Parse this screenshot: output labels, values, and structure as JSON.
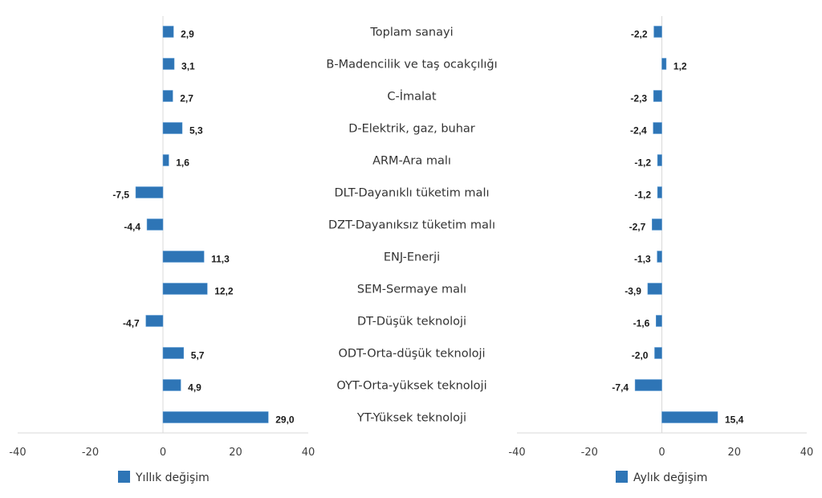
{
  "chart_data": [
    {
      "type": "bar",
      "orientation": "horizontal",
      "title": "",
      "xlabel": "",
      "ylabel": "",
      "xlim": [
        -40,
        40
      ],
      "xticks": [
        "-40",
        "-20",
        "0",
        "20",
        "40"
      ],
      "legend": {
        "label": "Yıllık değişim",
        "placement": "bottom"
      },
      "categories": [
        "Toplam sanayi",
        "B-Madencilik ve taş ocakçılığı",
        "C-İmalat",
        "D-Elektrik, gaz, buhar",
        "ARM-Ara malı",
        "DLT-Dayanıklı tüketim malı",
        "DZT-Dayanıksız tüketim malı",
        "ENJ-Enerji",
        "SEM-Sermaye malı",
        "DT-Düşük teknoloji",
        "ODT-Orta-düşük teknoloji",
        "OYT-Orta-yüksek teknoloji",
        "YT-Yüksek teknoloji"
      ],
      "values": [
        2.9,
        3.1,
        2.7,
        5.3,
        1.6,
        -7.5,
        -4.4,
        11.3,
        12.2,
        -4.7,
        5.7,
        4.9,
        29.0
      ],
      "labels": [
        "2,9",
        "3,1",
        "2,7",
        "5,3",
        "1,6",
        "-7,5",
        "-4,4",
        "11,3",
        "12,2",
        "-4,7",
        "5,7",
        "4,9",
        "29,0"
      ],
      "color": "#2e75b6"
    },
    {
      "type": "bar",
      "orientation": "horizontal",
      "title": "",
      "xlabel": "",
      "ylabel": "",
      "xlim": [
        -40,
        40
      ],
      "xticks": [
        "-40",
        "-20",
        "0",
        "20",
        "40"
      ],
      "legend": {
        "label": "Aylık değişim",
        "placement": "bottom"
      },
      "categories": [
        "Toplam sanayi",
        "B-Madencilik ve taş ocakçılığı",
        "C-İmalat",
        "D-Elektrik, gaz, buhar",
        "ARM-Ara malı",
        "DLT-Dayanıklı tüketim malı",
        "DZT-Dayanıksız tüketim malı",
        "ENJ-Enerji",
        "SEM-Sermaye malı",
        "DT-Düşük teknoloji",
        "ODT-Orta-düşük teknoloji",
        "OYT-Orta-yüksek teknoloji",
        "YT-Yüksek teknoloji"
      ],
      "values": [
        -2.2,
        1.2,
        -2.3,
        -2.4,
        -1.2,
        -1.2,
        -2.7,
        -1.3,
        -3.9,
        -1.6,
        -2.0,
        -7.4,
        15.4
      ],
      "labels": [
        "-2,2",
        "1,2",
        "-2,3",
        "-2,4",
        "-1,2",
        "-1,2",
        "-2,7",
        "-1,3",
        "-3,9",
        "-1,6",
        "-2,0",
        "-7,4",
        "15,4"
      ],
      "color": "#2e75b6"
    }
  ]
}
